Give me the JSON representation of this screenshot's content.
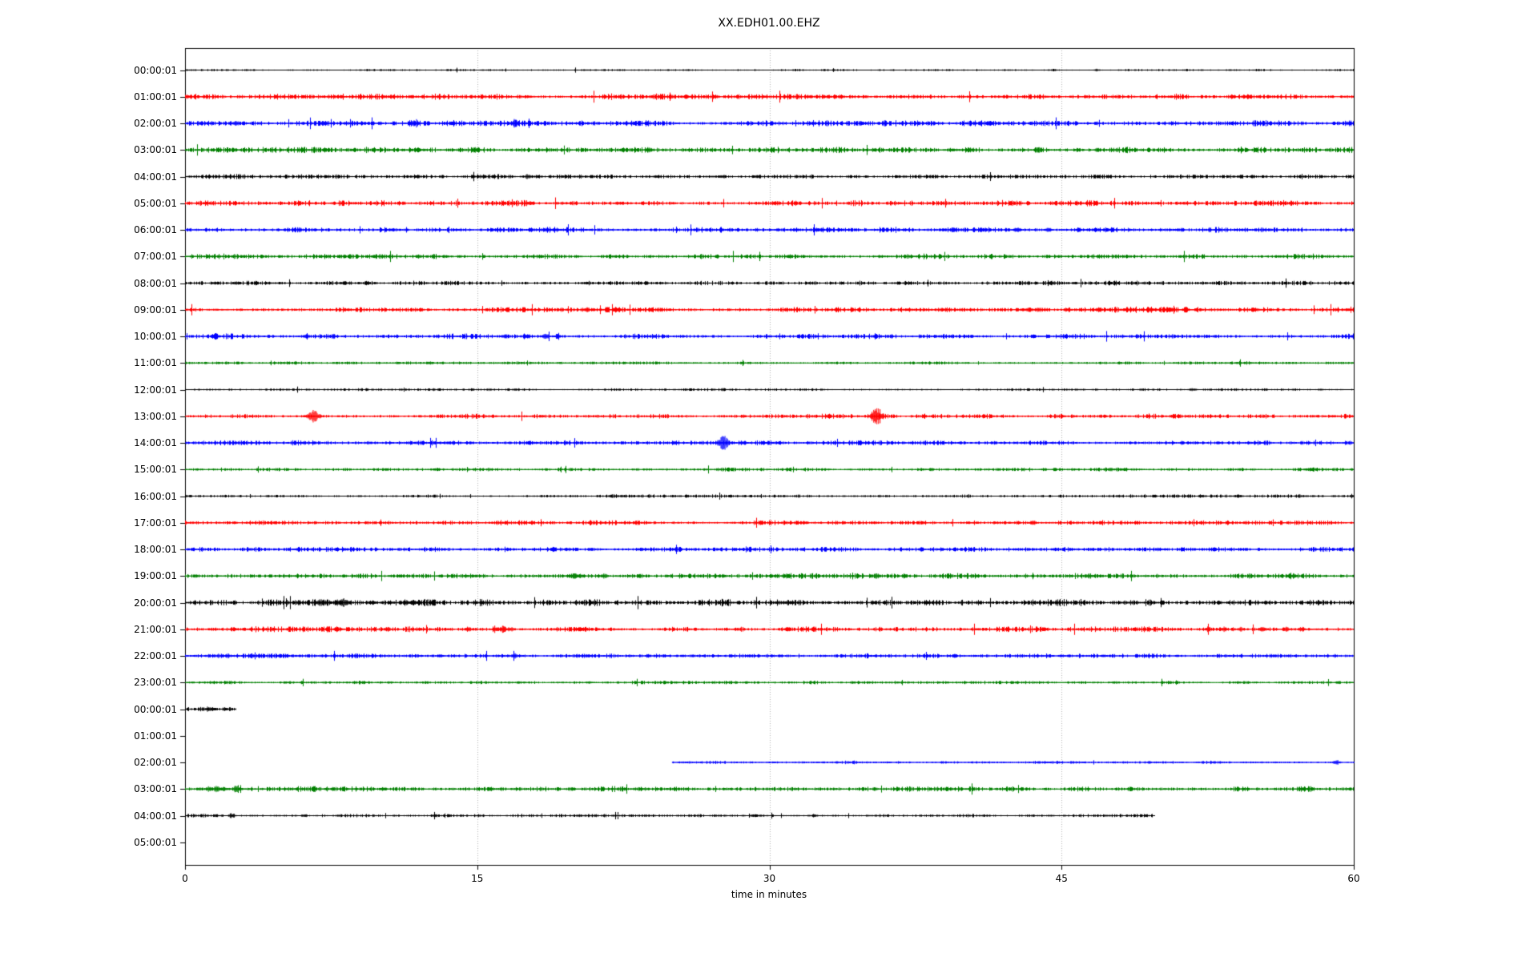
{
  "figure": {
    "title": "XX.EDH01.00.EHZ"
  },
  "chart_data": {
    "type": "line",
    "subtype": "seismic-helicorder-dayplot",
    "title": "XX.EDH01.00.EHZ",
    "xlabel": "time in minutes",
    "xlim": [
      0,
      60
    ],
    "xticks": [
      0,
      15,
      30,
      45,
      60
    ],
    "grid_x": [
      15,
      30,
      45
    ],
    "grid_on": true,
    "legend": "none",
    "trace_color_cycle": [
      "#000000",
      "#ff0000",
      "#0000ff",
      "#008000"
    ],
    "row_unit": "one hour per row, amplitude in pixels (half-height), spikes as [minute, amplitude, width_min]",
    "rows": [
      {
        "label": "00:00:01",
        "color": "#000000",
        "segments": [
          [
            0,
            60
          ]
        ],
        "noise": 0.6,
        "spikes": [
          [
            44.6,
            1.5
          ],
          [
            46.8,
            1.5
          ]
        ]
      },
      {
        "label": "01:00:01",
        "color": "#ff0000",
        "segments": [
          [
            0,
            60
          ]
        ],
        "noise": 1.6,
        "spikes": [
          [
            8,
            2
          ],
          [
            17.5,
            2
          ],
          [
            25,
            2
          ],
          [
            33,
            2
          ]
        ]
      },
      {
        "label": "02:00:01",
        "color": "#0000ff",
        "segments": [
          [
            0,
            60
          ]
        ],
        "noise": 1.6,
        "spikes": [
          [
            2.6,
            3
          ],
          [
            7.1,
            3
          ],
          [
            10,
            2
          ],
          [
            11.8,
            5
          ],
          [
            16.9,
            5
          ],
          [
            23,
            2
          ],
          [
            46.8,
            2
          ]
        ]
      },
      {
        "label": "03:00:01",
        "color": "#008000",
        "segments": [
          [
            0,
            60
          ]
        ],
        "noise": 1.6,
        "spikes": [
          [
            12.2,
            2
          ],
          [
            14.9,
            3
          ],
          [
            23.8,
            4
          ],
          [
            40.2,
            3
          ],
          [
            43.8,
            3
          ],
          [
            46.8,
            2
          ]
        ]
      },
      {
        "label": "04:00:01",
        "color": "#000000",
        "segments": [
          [
            0,
            60
          ]
        ],
        "noise": 1.2,
        "spikes": [
          [
            17.6,
            3
          ],
          [
            24.2,
            2
          ],
          [
            27.6,
            2
          ],
          [
            29.4,
            2
          ]
        ]
      },
      {
        "label": "05:00:01",
        "color": "#ff0000",
        "segments": [
          [
            0,
            60
          ]
        ],
        "noise": 1.6,
        "spikes": [
          [
            17.7,
            3
          ],
          [
            22.2,
            2
          ]
        ]
      },
      {
        "label": "06:00:01",
        "color": "#0000ff",
        "segments": [
          [
            0,
            60
          ]
        ],
        "noise": 1.5,
        "spikes": [
          [
            32.6,
            2
          ],
          [
            39.4,
            3
          ],
          [
            40.9,
            3
          ],
          [
            42.7,
            4
          ],
          [
            44.3,
            3
          ]
        ]
      },
      {
        "label": "07:00:01",
        "color": "#008000",
        "segments": [
          [
            0,
            60
          ]
        ],
        "noise": 1.5,
        "spikes": [
          [
            12,
            3
          ],
          [
            35.7,
            2
          ]
        ]
      },
      {
        "label": "08:00:01",
        "color": "#000000",
        "segments": [
          [
            0,
            60
          ]
        ],
        "noise": 1.2,
        "spikes": [
          [
            2.6,
            2
          ],
          [
            44.5,
            3
          ]
        ]
      },
      {
        "label": "09:00:01",
        "color": "#ff0000",
        "segments": [
          [
            0,
            60
          ]
        ],
        "noise": 1.5,
        "spikes": [
          [
            20.6,
            3
          ],
          [
            43.3,
            3
          ],
          [
            43.8,
            3
          ],
          [
            45.3,
            3
          ],
          [
            46.9,
            3
          ],
          [
            48.3,
            3
          ],
          [
            49.5,
            3
          ],
          [
            50.6,
            4
          ]
        ]
      },
      {
        "label": "10:00:01",
        "color": "#0000ff",
        "segments": [
          [
            0,
            60
          ]
        ],
        "noise": 1.4,
        "spikes": [
          [
            1.5,
            4
          ],
          [
            6.2,
            3
          ],
          [
            7.6,
            3
          ],
          [
            16.4,
            3
          ],
          [
            18.5,
            4
          ],
          [
            19.1,
            3
          ]
        ]
      },
      {
        "label": "11:00:01",
        "color": "#008000",
        "segments": [
          [
            0,
            60
          ]
        ],
        "noise": 0.9,
        "spikes": [
          [
            12.6,
            2
          ]
        ]
      },
      {
        "label": "12:00:01",
        "color": "#000000",
        "segments": [
          [
            0,
            60
          ]
        ],
        "noise": 0.7,
        "spikes": [
          [
            51.7,
            2
          ]
        ]
      },
      {
        "label": "13:00:01",
        "color": "#ff0000",
        "segments": [
          [
            0,
            60
          ]
        ],
        "noise": 1.3,
        "spikes": [
          [
            6.6,
            7,
            0.22
          ],
          [
            35.5,
            10,
            0.22
          ]
        ]
      },
      {
        "label": "14:00:01",
        "color": "#0000ff",
        "segments": [
          [
            0,
            60
          ]
        ],
        "noise": 1.3,
        "spikes": [
          [
            27.6,
            9,
            0.2
          ]
        ]
      },
      {
        "label": "15:00:01",
        "color": "#008000",
        "segments": [
          [
            0,
            60
          ]
        ],
        "noise": 1.0,
        "spikes": [
          [
            47.5,
            2
          ]
        ]
      },
      {
        "label": "16:00:01",
        "color": "#000000",
        "segments": [
          [
            0,
            60
          ]
        ],
        "noise": 0.9,
        "spikes": [
          [
            52.2,
            2
          ],
          [
            54.1,
            2
          ],
          [
            57.2,
            2
          ]
        ]
      },
      {
        "label": "17:00:01",
        "color": "#ff0000",
        "segments": [
          [
            0,
            60
          ]
        ],
        "noise": 1.3,
        "spikes": [
          [
            41.6,
            2
          ],
          [
            43.5,
            3
          ]
        ]
      },
      {
        "label": "18:00:01",
        "color": "#0000ff",
        "segments": [
          [
            0,
            60
          ]
        ],
        "noise": 1.4,
        "spikes": [
          [
            50,
            1.5
          ],
          [
            52.7,
            1.5
          ],
          [
            54.2,
            1.5
          ]
        ]
      },
      {
        "label": "19:00:01",
        "color": "#008000",
        "segments": [
          [
            0,
            60
          ]
        ],
        "noise": 1.4,
        "spikes": [
          [
            20,
            4
          ],
          [
            21.5,
            3
          ],
          [
            30.8,
            3
          ],
          [
            35.5,
            3
          ],
          [
            46.3,
            3
          ],
          [
            56.9,
            3
          ]
        ]
      },
      {
        "label": "20:00:01",
        "color": "#000000",
        "segments": [
          [
            0,
            60
          ]
        ],
        "noise": 1.8,
        "spikes": [
          [
            7,
            4,
            0.2
          ],
          [
            8,
            5,
            0.3
          ],
          [
            9.6,
            3
          ],
          [
            11.3,
            3
          ],
          [
            11.7,
            3
          ]
        ]
      },
      {
        "label": "21:00:01",
        "color": "#ff0000",
        "segments": [
          [
            0,
            60
          ]
        ],
        "noise": 1.5,
        "spikes": [
          [
            10.4,
            3
          ],
          [
            14.5,
            3
          ],
          [
            15.9,
            4
          ],
          [
            16.3,
            4
          ],
          [
            16.7,
            3
          ],
          [
            20.5,
            3
          ],
          [
            52.5,
            3
          ],
          [
            53.3,
            3
          ],
          [
            54.2,
            3
          ],
          [
            55.3,
            3
          ],
          [
            56.5,
            3
          ],
          [
            57.3,
            3
          ]
        ]
      },
      {
        "label": "22:00:01",
        "color": "#0000ff",
        "segments": [
          [
            0,
            60
          ]
        ],
        "noise": 1.3,
        "spikes": [
          [
            3.4,
            3
          ],
          [
            16.9,
            3
          ],
          [
            20.7,
            2
          ],
          [
            39.5,
            2
          ],
          [
            45,
            2
          ]
        ]
      },
      {
        "label": "23:00:01",
        "color": "#008000",
        "segments": [
          [
            0,
            60
          ]
        ],
        "noise": 0.9,
        "spikes": [
          [
            10.5,
            1.5
          ],
          [
            20.7,
            1.5
          ]
        ]
      },
      {
        "label": "00:00:01",
        "color": "#000000",
        "segments": [
          [
            0,
            2.6
          ]
        ],
        "noise": 1.2,
        "spikes": [
          [
            1.15,
            3
          ],
          [
            1.5,
            3
          ]
        ]
      },
      {
        "label": "01:00:01",
        "color": "#ff0000",
        "segments": [],
        "noise": 0,
        "spikes": []
      },
      {
        "label": "02:00:01",
        "color": "#0000ff",
        "segments": [
          [
            25,
            60
          ]
        ],
        "noise": 0.8,
        "spikes": [
          [
            44.2,
            1.5
          ],
          [
            59.1,
            3
          ]
        ]
      },
      {
        "label": "03:00:01",
        "color": "#008000",
        "segments": [
          [
            0,
            60
          ]
        ],
        "noise": 1.5,
        "spikes": [
          [
            0.7,
            2
          ],
          [
            1.2,
            3
          ],
          [
            1.6,
            4
          ],
          [
            2.0,
            3
          ],
          [
            2.6,
            4
          ],
          [
            35.4,
            2
          ]
        ]
      },
      {
        "label": "04:00:01",
        "color": "#000000",
        "segments": [
          [
            0,
            49.8
          ]
        ],
        "noise": 0.9,
        "spikes": [
          [
            2.4,
            3
          ],
          [
            6.1,
            2
          ],
          [
            32.3,
            2
          ]
        ]
      },
      {
        "label": "05:00:01",
        "color": "#ff0000",
        "segments": [],
        "noise": 0,
        "spikes": []
      }
    ]
  }
}
